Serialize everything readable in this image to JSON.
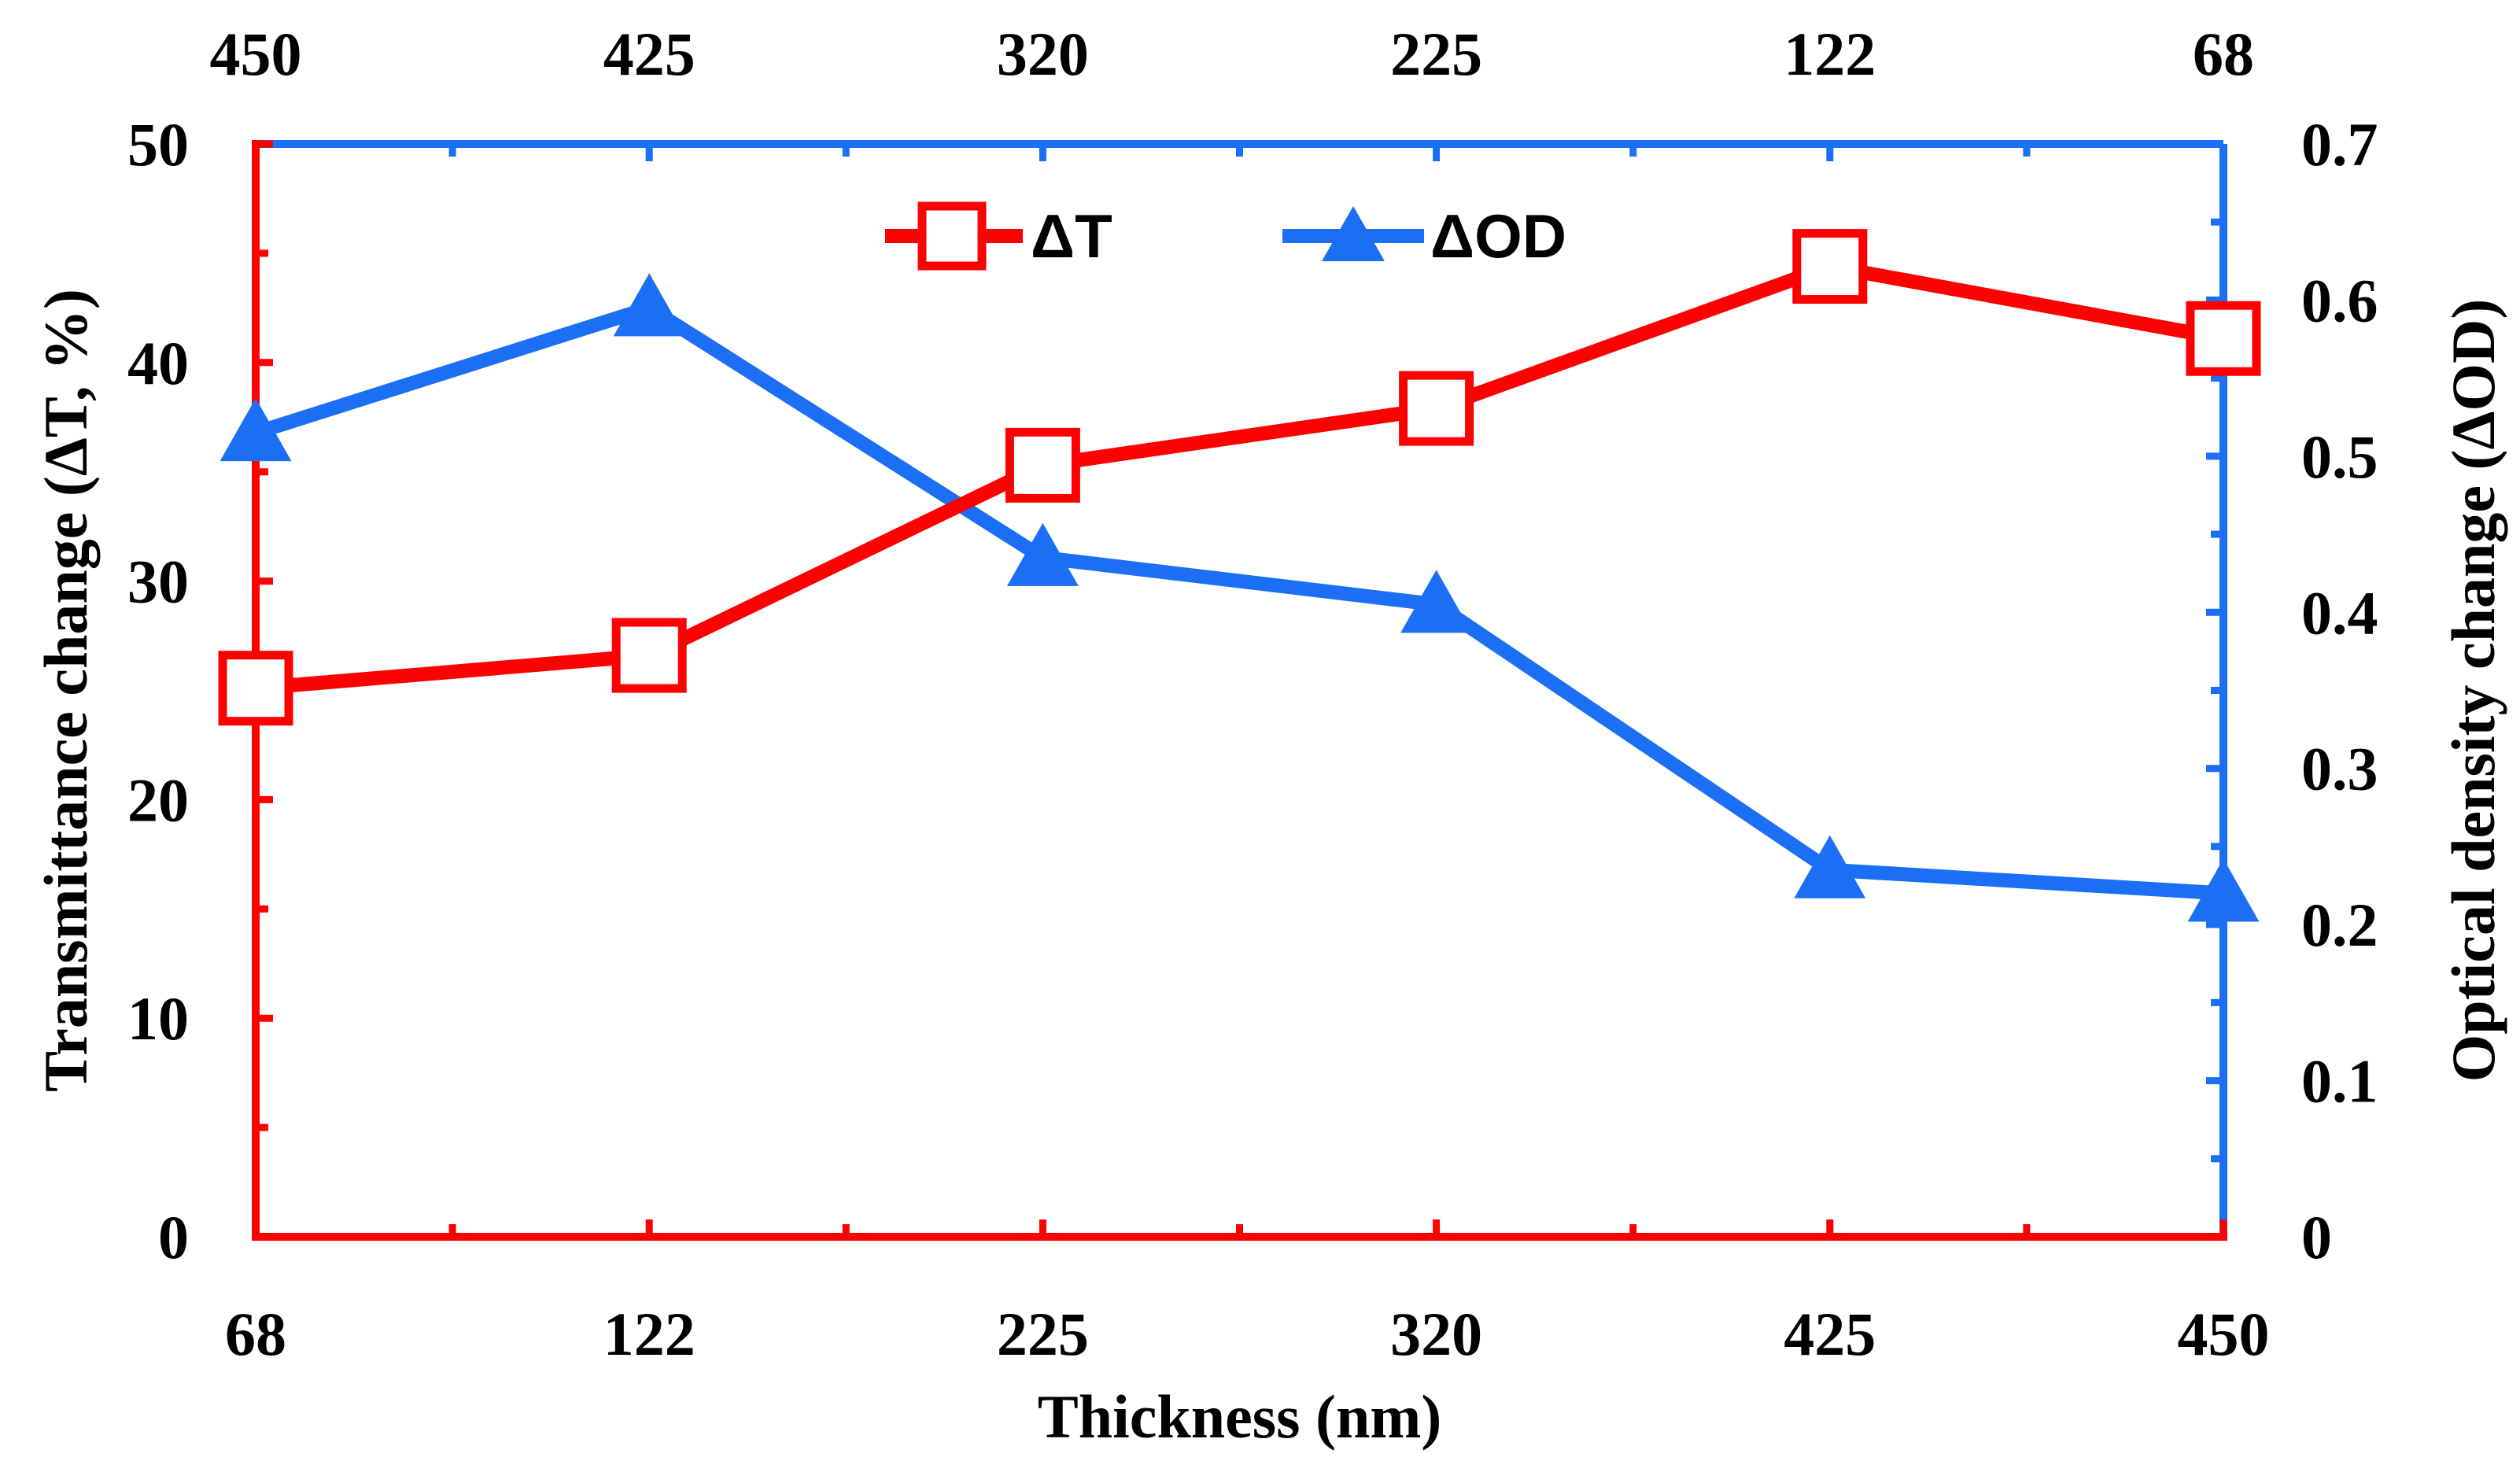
{
  "chart_data": {
    "type": "line",
    "categories": [
      "68",
      "122",
      "225",
      "320",
      "425",
      "450"
    ],
    "top_axis_labels": [
      "450",
      "425",
      "320",
      "225",
      "122",
      "68"
    ],
    "xlabel": "Thickness (nm)",
    "ylabel_left": "Transmittance change (ΔT, %)",
    "ylabel_right": "Optical density change (ΔOD)",
    "y_left_lim": [
      0,
      50
    ],
    "y_left_ticks": [
      "0",
      "10",
      "20",
      "30",
      "40",
      "50"
    ],
    "y_right_lim": [
      0,
      0.7
    ],
    "y_right_ticks": [
      "0",
      "0.1",
      "0.2",
      "0.3",
      "0.4",
      "0.5",
      "0.6",
      "0.7"
    ],
    "legend_position": "top-center",
    "series": [
      {
        "name": "ΔT",
        "axis": "left",
        "color": "#ff0000",
        "marker": "open-square",
        "values": [
          25.1,
          26.6,
          35.3,
          37.9,
          44.4,
          41.1
        ]
      },
      {
        "name": "ΔOD",
        "axis": "right",
        "color": "#1a6ff5",
        "marker": "filled-triangle",
        "values": [
          0.515,
          0.595,
          0.435,
          0.405,
          0.235,
          0.22
        ]
      }
    ]
  }
}
